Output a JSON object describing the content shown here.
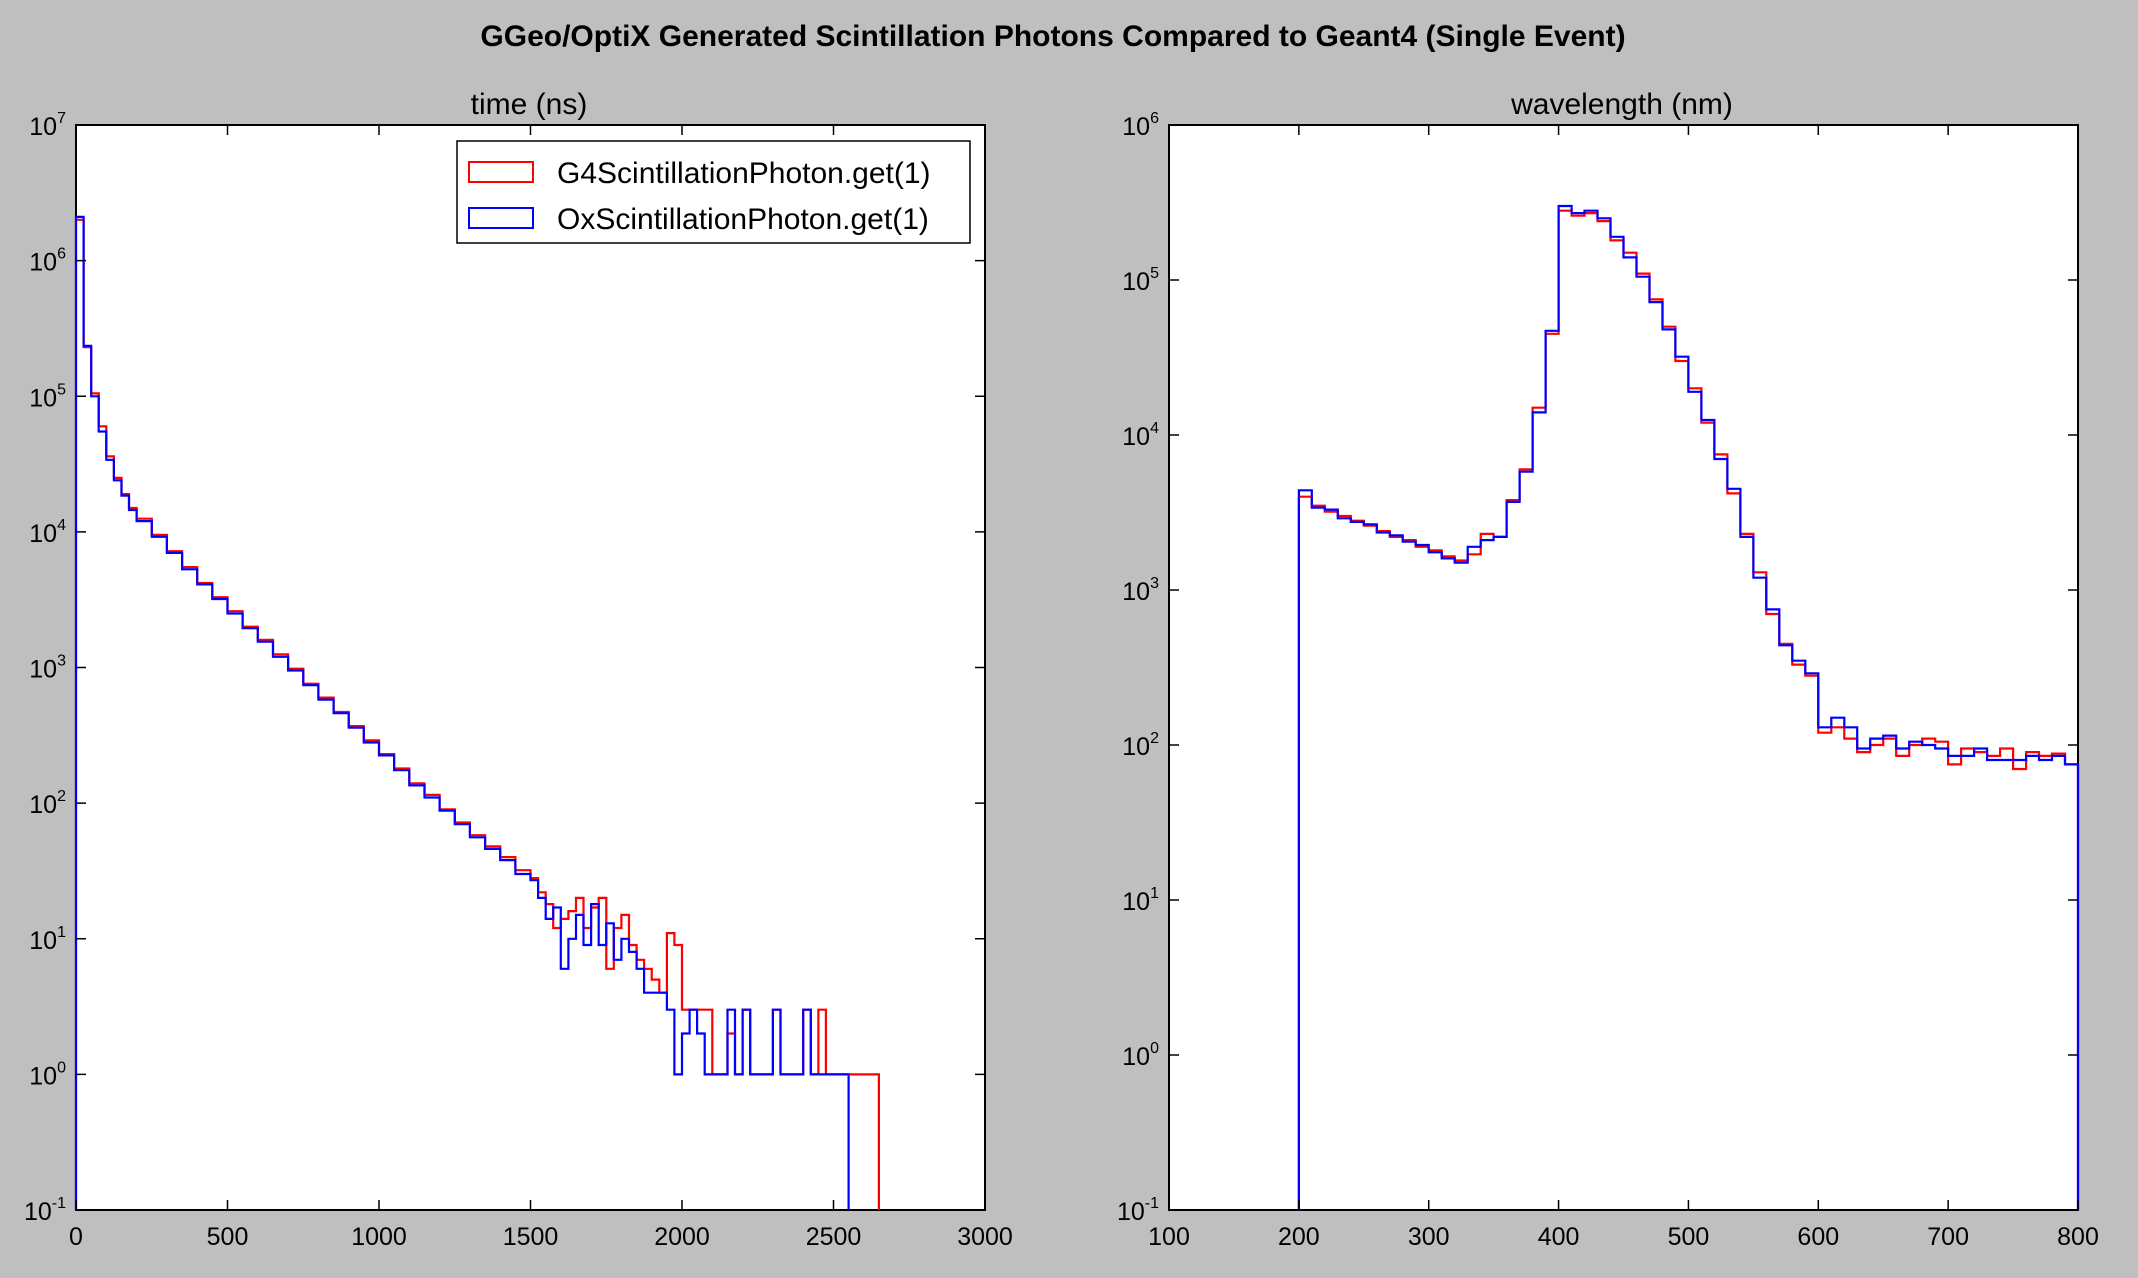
{
  "figure": {
    "suptitle": "GGeo/OptiX Generated Scintillation Photons Compared to Geant4 (Single Event)",
    "background": "#bfbfbf"
  },
  "chart_data": [
    {
      "type": "histogram-step",
      "title": "time (ns)",
      "xlabel": "",
      "ylabel": "",
      "xlim": [
        0,
        3000
      ],
      "ylim": [
        0.1,
        10000000
      ],
      "yscale": "log",
      "xticks": [
        0,
        500,
        1000,
        1500,
        2000,
        2500,
        3000
      ],
      "yticks": [
        {
          "base": "10",
          "exp": "-1"
        },
        {
          "base": "10",
          "exp": "0"
        },
        {
          "base": "10",
          "exp": "1"
        },
        {
          "base": "10",
          "exp": "2"
        },
        {
          "base": "10",
          "exp": "3"
        },
        {
          "base": "10",
          "exp": "4"
        },
        {
          "base": "10",
          "exp": "5"
        },
        {
          "base": "10",
          "exp": "6"
        },
        {
          "base": "10",
          "exp": "7"
        }
      ],
      "legend_position": "top-right",
      "legend": [
        "G4ScintillationPhoton.get(1)",
        "OxScintillationPhoton.get(1)"
      ],
      "series": [
        {
          "name": "G4ScintillationPhoton.get(1)",
          "color": "#ff0000",
          "x": [
            0,
            25,
            50,
            75,
            100,
            125,
            150,
            175,
            200,
            250,
            300,
            350,
            400,
            450,
            500,
            550,
            600,
            650,
            700,
            750,
            800,
            850,
            900,
            950,
            1000,
            1050,
            1100,
            1150,
            1200,
            1250,
            1300,
            1350,
            1400,
            1450,
            1500,
            1525,
            1550,
            1575,
            1600,
            1625,
            1650,
            1675,
            1700,
            1725,
            1750,
            1775,
            1800,
            1825,
            1850,
            1875,
            1900,
            1925,
            1950,
            1975,
            2000,
            2050,
            2100,
            2150,
            2175,
            2200,
            2225,
            2275,
            2300,
            2325,
            2350,
            2400,
            2425,
            2450,
            2475,
            2500,
            2525,
            2550,
            2575,
            2600,
            2625
          ],
          "y": [
            2000000,
            230000,
            105000,
            60000,
            36000,
            25000,
            19000,
            15000,
            12500,
            9500,
            7200,
            5500,
            4200,
            3300,
            2600,
            2000,
            1600,
            1250,
            980,
            760,
            600,
            470,
            370,
            290,
            230,
            180,
            140,
            115,
            90,
            72,
            58,
            48,
            40,
            32,
            28,
            22,
            18,
            12,
            14,
            16,
            20,
            12,
            17,
            20,
            6,
            12,
            15,
            9,
            7,
            6,
            5,
            4,
            11,
            9,
            3,
            3,
            1,
            2,
            1,
            3,
            1,
            1,
            3,
            1,
            1,
            3,
            1,
            3,
            1,
            1,
            1,
            1,
            1,
            1,
            1
          ]
        },
        {
          "name": "OxScintillationPhoton.get(1)",
          "color": "#0000ff",
          "x": [
            0,
            25,
            50,
            75,
            100,
            125,
            150,
            175,
            200,
            250,
            300,
            350,
            400,
            450,
            500,
            550,
            600,
            650,
            700,
            750,
            800,
            850,
            900,
            950,
            1000,
            1050,
            1100,
            1150,
            1200,
            1250,
            1300,
            1350,
            1400,
            1450,
            1500,
            1525,
            1550,
            1575,
            1600,
            1625,
            1650,
            1675,
            1700,
            1725,
            1750,
            1775,
            1800,
            1825,
            1850,
            1875,
            1900,
            1925,
            1950,
            1975,
            2000,
            2025,
            2050,
            2075,
            2100,
            2150,
            2175,
            2200,
            2225,
            2275,
            2300,
            2325,
            2350,
            2400,
            2425,
            2450,
            2475,
            2500,
            2525
          ],
          "y": [
            2100000,
            235000,
            100000,
            55000,
            34000,
            24000,
            18500,
            14500,
            12000,
            9200,
            7000,
            5300,
            4100,
            3200,
            2500,
            1950,
            1550,
            1200,
            950,
            740,
            580,
            460,
            360,
            280,
            225,
            175,
            135,
            110,
            88,
            70,
            56,
            46,
            38,
            30,
            27,
            20,
            14,
            17,
            6,
            10,
            15,
            9,
            18,
            9,
            13,
            7,
            10,
            8,
            6,
            4,
            4,
            4,
            3,
            1,
            2,
            3,
            2,
            1,
            1,
            3,
            1,
            3,
            1,
            1,
            3,
            1,
            1,
            3,
            1,
            1,
            1,
            1,
            1
          ]
        }
      ]
    },
    {
      "type": "histogram-step",
      "title": "wavelength (nm)",
      "xlabel": "",
      "ylabel": "",
      "xlim": [
        100,
        800
      ],
      "ylim": [
        0.1,
        1000000
      ],
      "yscale": "log",
      "xticks": [
        100,
        200,
        300,
        400,
        500,
        600,
        700,
        800
      ],
      "yticks": [
        {
          "base": "10",
          "exp": "-1"
        },
        {
          "base": "10",
          "exp": "0"
        },
        {
          "base": "10",
          "exp": "1"
        },
        {
          "base": "10",
          "exp": "2"
        },
        {
          "base": "10",
          "exp": "3"
        },
        {
          "base": "10",
          "exp": "4"
        },
        {
          "base": "10",
          "exp": "5"
        },
        {
          "base": "10",
          "exp": "6"
        }
      ],
      "series": [
        {
          "name": "G4ScintillationPhoton.get(1)",
          "color": "#ff0000",
          "x": [
            200,
            210,
            220,
            230,
            240,
            250,
            260,
            270,
            280,
            290,
            300,
            310,
            320,
            330,
            340,
            350,
            360,
            370,
            380,
            390,
            400,
            410,
            420,
            430,
            440,
            450,
            460,
            470,
            480,
            490,
            500,
            510,
            520,
            530,
            540,
            550,
            560,
            570,
            580,
            590,
            600,
            610,
            620,
            630,
            640,
            650,
            660,
            670,
            680,
            690,
            700,
            710,
            720,
            730,
            740,
            750,
            760,
            770,
            780,
            790
          ],
          "y": [
            4000,
            3500,
            3200,
            3000,
            2800,
            2600,
            2400,
            2200,
            2100,
            1900,
            1800,
            1650,
            1550,
            1700,
            2300,
            2200,
            3800,
            6000,
            15000,
            45000,
            280000,
            260000,
            270000,
            240000,
            180000,
            150000,
            110000,
            75000,
            50000,
            30000,
            20000,
            12000,
            7500,
            4200,
            2300,
            1300,
            700,
            450,
            330,
            280,
            120,
            130,
            110,
            90,
            100,
            110,
            85,
            100,
            110,
            105,
            75,
            95,
            90,
            85,
            95,
            70,
            90,
            85,
            88,
            75
          ]
        },
        {
          "name": "OxScintillationPhoton.get(1)",
          "color": "#0000ff",
          "x": [
            200,
            210,
            220,
            230,
            240,
            250,
            260,
            270,
            280,
            290,
            300,
            310,
            320,
            330,
            340,
            350,
            360,
            370,
            380,
            390,
            400,
            410,
            420,
            430,
            440,
            450,
            460,
            470,
            480,
            490,
            500,
            510,
            520,
            530,
            540,
            550,
            560,
            570,
            580,
            590,
            600,
            610,
            620,
            630,
            640,
            650,
            660,
            670,
            680,
            690,
            700,
            710,
            720,
            730,
            740,
            750,
            760,
            770,
            780,
            790
          ],
          "y": [
            4400,
            3400,
            3300,
            2900,
            2750,
            2650,
            2350,
            2250,
            2050,
            1950,
            1750,
            1600,
            1500,
            1900,
            2100,
            2200,
            3700,
            5800,
            14000,
            47000,
            300000,
            270000,
            280000,
            250000,
            190000,
            140000,
            105000,
            72000,
            48000,
            32000,
            19000,
            12500,
            7000,
            4500,
            2200,
            1200,
            750,
            440,
            350,
            290,
            130,
            150,
            130,
            95,
            110,
            115,
            95,
            105,
            100,
            95,
            85,
            85,
            95,
            80,
            80,
            80,
            85,
            80,
            85,
            75
          ]
        }
      ]
    }
  ]
}
